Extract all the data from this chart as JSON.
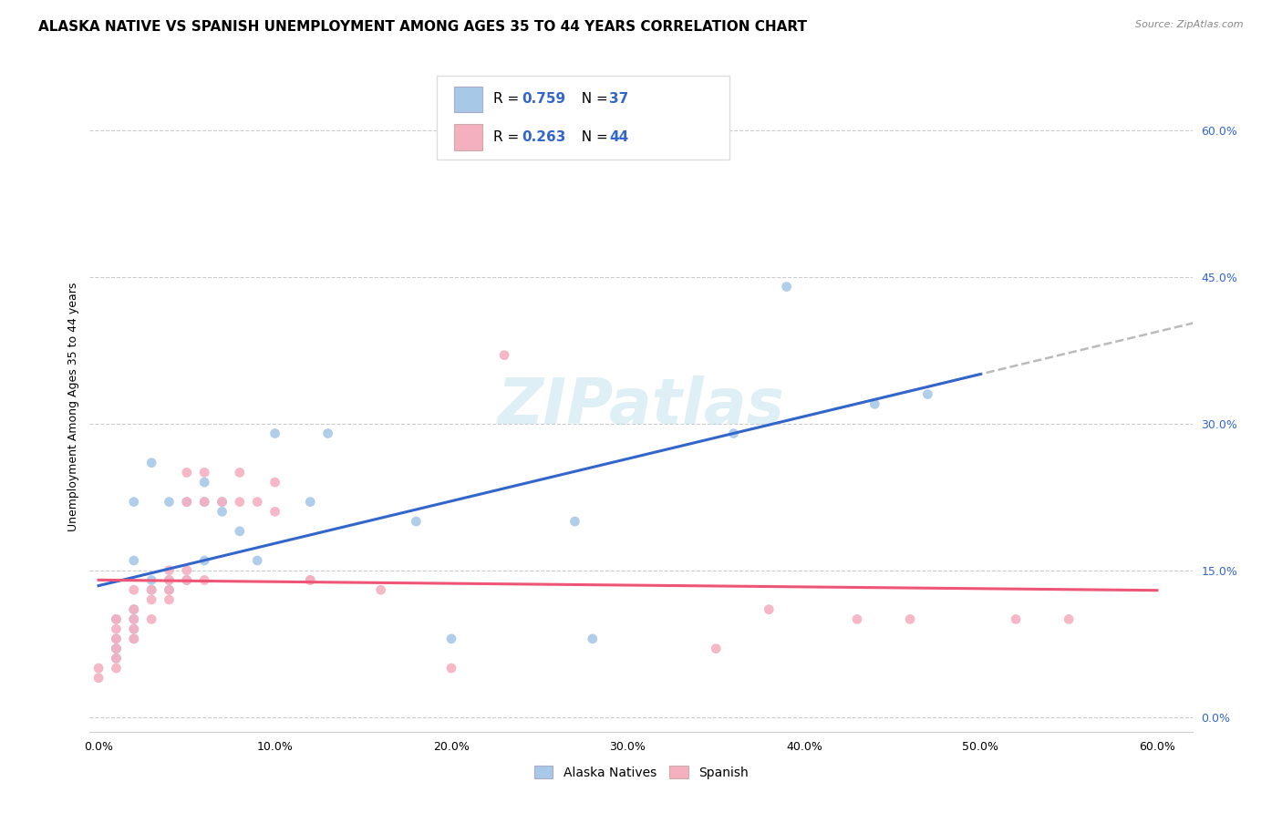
{
  "title": "ALASKA NATIVE VS SPANISH UNEMPLOYMENT AMONG AGES 35 TO 44 YEARS CORRELATION CHART",
  "source": "Source: ZipAtlas.com",
  "ylabel": "Unemployment Among Ages 35 to 44 years",
  "xlim": [
    -0.5,
    62
  ],
  "ylim": [
    -1.5,
    65
  ],
  "x_ticks": [
    0,
    10,
    20,
    30,
    40,
    50,
    60
  ],
  "x_tick_labels": [
    "0.0%",
    "10.0%",
    "20.0%",
    "30.0%",
    "40.0%",
    "50.0%",
    "60.0%"
  ],
  "y_ticks_right": [
    0,
    15,
    30,
    45,
    60
  ],
  "y_tick_labels_right": [
    "0.0%",
    "15.0%",
    "30.0%",
    "45.0%",
    "60.0%"
  ],
  "alaska_scatter_color": "#a8c8e8",
  "spanish_scatter_color": "#f5b0c0",
  "alaska_line_color": "#3366cc",
  "spanish_line_color": "#ee5577",
  "dashed_color": "#bbbbbb",
  "r_n_color": "#3366cc",
  "legend_label1": "Alaska Natives",
  "legend_label2": "Spanish",
  "watermark": "ZIPatlas",
  "alaska_x": [
    1,
    1,
    1,
    1,
    1,
    2,
    2,
    2,
    2,
    2,
    2,
    3,
    3,
    3,
    4,
    4,
    4,
    5,
    5,
    6,
    6,
    6,
    7,
    7,
    8,
    9,
    10,
    12,
    13,
    18,
    20,
    27,
    28,
    36,
    39,
    44,
    47
  ],
  "alaska_y": [
    6,
    7,
    7,
    8,
    10,
    8,
    9,
    10,
    11,
    16,
    22,
    13,
    14,
    26,
    13,
    14,
    22,
    14,
    22,
    16,
    22,
    24,
    21,
    22,
    19,
    16,
    29,
    22,
    29,
    20,
    8,
    20,
    8,
    29,
    44,
    32,
    33
  ],
  "spanish_x": [
    0,
    0,
    1,
    1,
    1,
    1,
    1,
    1,
    2,
    2,
    2,
    2,
    2,
    3,
    3,
    3,
    4,
    4,
    4,
    4,
    5,
    5,
    5,
    5,
    6,
    6,
    6,
    7,
    8,
    8,
    9,
    10,
    10,
    12,
    12,
    16,
    20,
    23,
    35,
    38,
    43,
    46,
    52,
    55
  ],
  "spanish_y": [
    4,
    5,
    5,
    6,
    7,
    8,
    9,
    10,
    8,
    9,
    10,
    11,
    13,
    10,
    12,
    13,
    12,
    13,
    14,
    15,
    14,
    15,
    22,
    25,
    14,
    22,
    25,
    22,
    22,
    25,
    22,
    21,
    24,
    14,
    14,
    13,
    5,
    37,
    7,
    11,
    10,
    10,
    10,
    10
  ],
  "title_fontsize": 11,
  "label_fontsize": 9,
  "tick_fontsize": 9,
  "scatter_size": 60
}
